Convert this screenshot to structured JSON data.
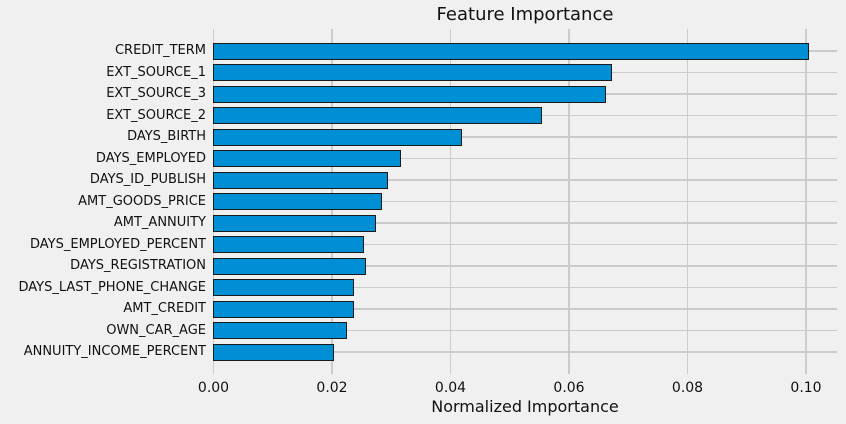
{
  "chart_data": {
    "type": "bar",
    "orientation": "horizontal",
    "title": "Feature Importance",
    "xlabel": "Normalized Importance",
    "ylabel": "",
    "categories": [
      "CREDIT_TERM",
      "EXT_SOURCE_1",
      "EXT_SOURCE_3",
      "EXT_SOURCE_2",
      "DAYS_BIRTH",
      "DAYS_EMPLOYED",
      "DAYS_ID_PUBLISH",
      "AMT_GOODS_PRICE",
      "AMT_ANNUITY",
      "DAYS_EMPLOYED_PERCENT",
      "DAYS_REGISTRATION",
      "DAYS_LAST_PHONE_CHANGE",
      "AMT_CREDIT",
      "OWN_CAR_AGE",
      "ANNUITY_INCOME_PERCENT"
    ],
    "values": [
      0.1005,
      0.0672,
      0.0662,
      0.0553,
      0.0419,
      0.0315,
      0.0293,
      0.0284,
      0.0273,
      0.0254,
      0.0256,
      0.0237,
      0.0236,
      0.0225,
      0.0202
    ],
    "x_ticks": [
      {
        "value": 0.0,
        "label": "0.00"
      },
      {
        "value": 0.02,
        "label": "0.02"
      },
      {
        "value": 0.04,
        "label": "0.04"
      },
      {
        "value": 0.06,
        "label": "0.06"
      },
      {
        "value": 0.08,
        "label": "0.08"
      },
      {
        "value": 0.1,
        "label": "0.10"
      }
    ],
    "xlim": [
      0,
      0.1052
    ],
    "grid": true,
    "legend": null,
    "colors": {
      "background": "#f0f0f0",
      "bar_fill": "#008fd5",
      "bar_edge": "#1a1a1a",
      "grid": "#cbcbcb",
      "text": "#111111"
    }
  }
}
